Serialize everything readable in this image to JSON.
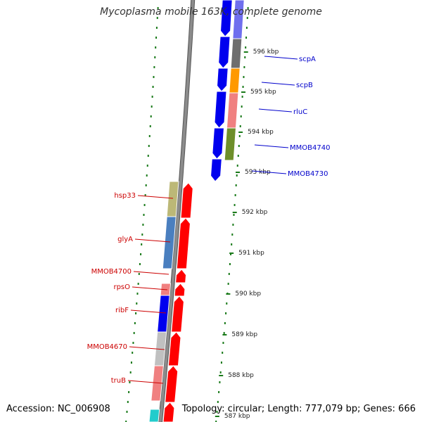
{
  "title": "Mycoplasma mobile 163K, complete genome",
  "footer": {
    "accession": "Accession: NC_006908",
    "summary": "Topology: circular; Length: 777,079 bp; Genes: 666"
  },
  "colors": {
    "backbone": "#8c8c8c",
    "tick": "#1a7a1a",
    "forward_label": "#0000cc",
    "reverse_label": "#cc0000"
  },
  "kbp_ticks": [
    {
      "label": "596 kbp"
    },
    {
      "label": "595 kbp"
    },
    {
      "label": "594 kbp"
    },
    {
      "label": "593 kbp"
    },
    {
      "label": "592 kbp"
    },
    {
      "label": "591 kbp"
    },
    {
      "label": "590 kbp"
    },
    {
      "label": "589 kbp"
    },
    {
      "label": "588 kbp"
    },
    {
      "label": "587 kbp"
    }
  ],
  "forward_genes": [
    {
      "name": "scpA",
      "color": "#0000ee"
    },
    {
      "name": "scpB",
      "color": "#0000ee"
    },
    {
      "name": "rluC",
      "color": "#0000ee"
    },
    {
      "name": "MMOB4740",
      "color": "#0000ee"
    },
    {
      "name": "MMOB4730",
      "color": "#0000ee"
    }
  ],
  "reverse_genes": [
    {
      "name": "hsp33",
      "color": "#ff0000"
    },
    {
      "name": "glyA",
      "color": "#ff0000"
    },
    {
      "name": "MMOB4700",
      "color": "#ff0000"
    },
    {
      "name": "rpsO",
      "color": "#ff0000"
    },
    {
      "name": "ribF",
      "color": "#ff0000"
    },
    {
      "name": "MMOB4670",
      "color": "#ff0000"
    },
    {
      "name": "truB",
      "color": "#ff0000"
    }
  ],
  "cog_colors": [
    "#6f6fee",
    "#6e6e6e",
    "#ff9900",
    "#f08080",
    "#6e8f2a",
    "#bcb877",
    "#4a7fbf",
    "#f08080",
    "#0000ee",
    "#c0c0c0",
    "#f08080",
    "#22cccc"
  ]
}
